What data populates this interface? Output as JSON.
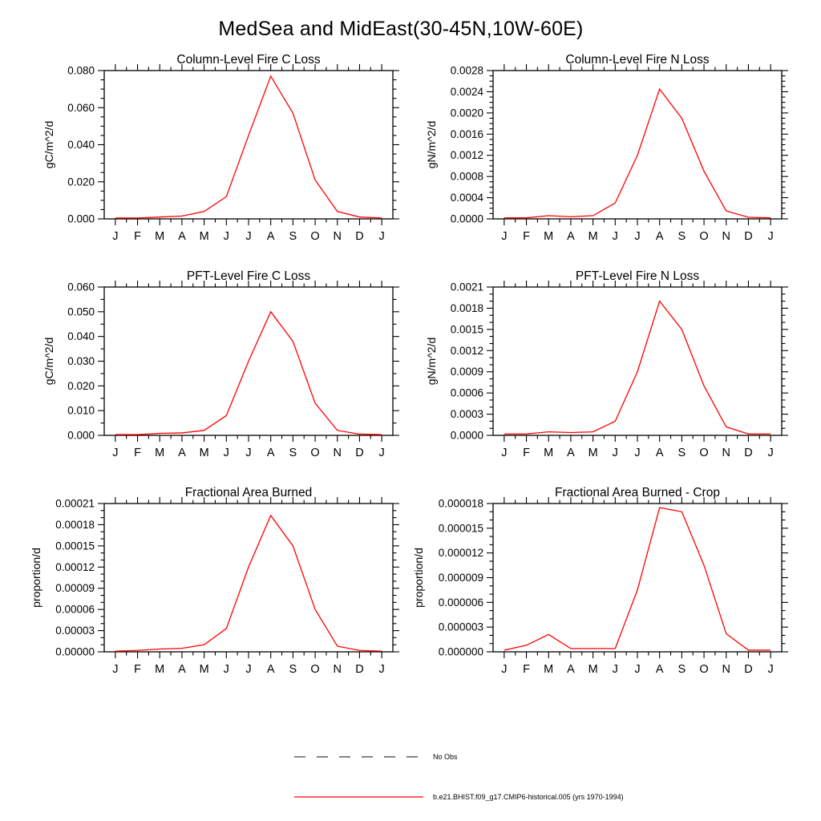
{
  "page_title": "MedSea and MidEast(30-45N,10W-60E)",
  "line_color": "#ff0000",
  "axis_color": "#000000",
  "chart_data": [
    {
      "type": "line",
      "title": "Column-Level Fire C Loss",
      "ylabel": "gC/m^2/d",
      "xlabel": "",
      "categories": [
        "J",
        "F",
        "M",
        "A",
        "M",
        "J",
        "J",
        "A",
        "S",
        "O",
        "N",
        "D",
        "J"
      ],
      "values": [
        0.0005,
        0.0005,
        0.001,
        0.0015,
        0.004,
        0.012,
        0.045,
        0.077,
        0.057,
        0.021,
        0.004,
        0.001,
        0.0005
      ],
      "ylim": [
        0,
        0.08
      ],
      "ytick_labels": [
        "0.000",
        "0.020",
        "0.040",
        "0.060",
        "0.080"
      ],
      "y_minor_divisions": 4,
      "grid": false
    },
    {
      "type": "line",
      "title": "Column-Level Fire N Loss",
      "ylabel": "gN/m^2/d",
      "xlabel": "",
      "categories": [
        "J",
        "F",
        "M",
        "A",
        "M",
        "J",
        "J",
        "A",
        "S",
        "O",
        "N",
        "D",
        "J"
      ],
      "values": [
        2e-05,
        2e-05,
        6e-05,
        4e-05,
        6e-05,
        0.0003,
        0.0012,
        0.00245,
        0.0019,
        0.0009,
        0.00015,
        3e-05,
        2e-05
      ],
      "ylim": [
        0,
        0.0028
      ],
      "ytick_labels": [
        "0.0000",
        "0.0004",
        "0.0008",
        "0.0012",
        "0.0016",
        "0.0020",
        "0.0024",
        "0.0028"
      ],
      "y_minor_divisions": 4,
      "grid": false
    },
    {
      "type": "line",
      "title": "PFT-Level Fire C Loss",
      "ylabel": "gC/m^2/d",
      "xlabel": "",
      "categories": [
        "J",
        "F",
        "M",
        "A",
        "M",
        "J",
        "J",
        "A",
        "S",
        "O",
        "N",
        "D",
        "J"
      ],
      "values": [
        0.0003,
        0.0003,
        0.0008,
        0.001,
        0.002,
        0.008,
        0.03,
        0.05,
        0.038,
        0.013,
        0.002,
        0.0005,
        0.0003
      ],
      "ylim": [
        0,
        0.06
      ],
      "ytick_labels": [
        "0.000",
        "0.010",
        "0.020",
        "0.030",
        "0.040",
        "0.050",
        "0.060"
      ],
      "y_minor_divisions": 2,
      "grid": false
    },
    {
      "type": "line",
      "title": "PFT-Level Fire N Loss",
      "ylabel": "gN/m^2/d",
      "xlabel": "",
      "categories": [
        "J",
        "F",
        "M",
        "A",
        "M",
        "J",
        "J",
        "A",
        "S",
        "O",
        "N",
        "D",
        "J"
      ],
      "values": [
        2e-05,
        2e-05,
        5e-05,
        4e-05,
        5e-05,
        0.0002,
        0.0009,
        0.0019,
        0.0015,
        0.0007,
        0.00012,
        2e-05,
        2e-05
      ],
      "ylim": [
        0,
        0.0021
      ],
      "ytick_labels": [
        "0.0000",
        "0.0003",
        "0.0006",
        "0.0009",
        "0.0012",
        "0.0015",
        "0.0018",
        "0.0021"
      ],
      "y_minor_divisions": 3,
      "grid": false
    },
    {
      "type": "line",
      "title": "Fractional Area Burned",
      "ylabel": "proportion/d",
      "xlabel": "",
      "categories": [
        "J",
        "F",
        "M",
        "A",
        "M",
        "J",
        "J",
        "A",
        "S",
        "O",
        "N",
        "D",
        "J"
      ],
      "values": [
        1e-06,
        2e-06,
        4e-06,
        5e-06,
        1e-05,
        3.3e-05,
        0.00012,
        0.000193,
        0.00015,
        6e-05,
        8e-06,
        2e-06,
        1e-06
      ],
      "ylim": [
        0,
        0.00021
      ],
      "ytick_labels": [
        "0.00000",
        "0.00003",
        "0.00006",
        "0.00009",
        "0.00012",
        "0.00015",
        "0.00018",
        "0.00021"
      ],
      "y_minor_divisions": 3,
      "grid": false
    },
    {
      "type": "line",
      "title": "Fractional Area Burned - Crop",
      "ylabel": "proportion/d",
      "xlabel": "",
      "categories": [
        "J",
        "F",
        "M",
        "A",
        "M",
        "J",
        "J",
        "A",
        "S",
        "O",
        "N",
        "D",
        "J"
      ],
      "values": [
        2e-07,
        8e-07,
        2.1e-06,
        4e-07,
        4e-07,
        4e-07,
        7.5e-06,
        1.75e-05,
        1.7e-05,
        1.05e-05,
        2.2e-06,
        2e-07,
        2e-07
      ],
      "ylim": [
        0,
        1.8e-05
      ],
      "ytick_labels": [
        "0.000000",
        "0.000003",
        "0.000006",
        "0.000009",
        "0.000012",
        "0.000015",
        "0.000018"
      ],
      "y_minor_divisions": 3,
      "grid": false
    }
  ],
  "legend": [
    {
      "label": "No Obs",
      "style": "dashed",
      "color": "#3a3a3a"
    },
    {
      "label": "b.e21.BHIST.f09_g17.CMIP6-historical.005 (yrs 1970-1994)",
      "style": "solid",
      "color": "#ff0000"
    }
  ]
}
